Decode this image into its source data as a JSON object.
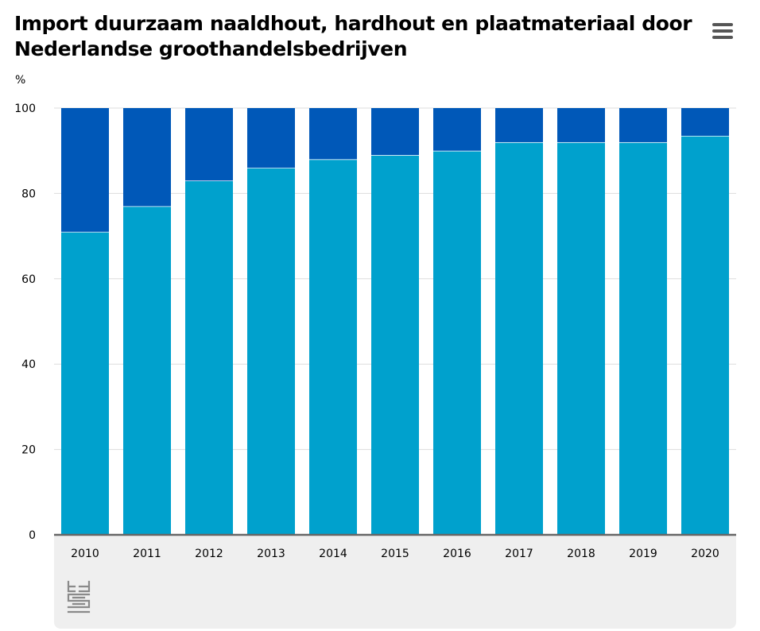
{
  "header": {
    "title": "Import duurzaam naaldhout, hardhout en plaatmateriaal door Nederlandse groothandelsbedrijven",
    "menu_icon": "hamburger-menu-icon"
  },
  "colors": {
    "series_1": "#00A1CD",
    "series_2": "#0058B8",
    "grid": "#dddddd",
    "axis": "#666666",
    "footer_bg": "#efefef"
  },
  "chart_data": {
    "type": "bar",
    "stacked": true,
    "title": "Import duurzaam naaldhout, hardhout en plaatmateriaal door Nederlandse groothandelsbedrijven",
    "ylabel": "%",
    "xlabel": "",
    "ylim": [
      0,
      100
    ],
    "yticks": [
      0,
      20,
      40,
      60,
      80,
      100
    ],
    "grid": true,
    "legend": "none",
    "categories": [
      "2010",
      "2011",
      "2012",
      "2013",
      "2014",
      "2015",
      "2016",
      "2017",
      "2018",
      "2019",
      "2020"
    ],
    "series": [
      {
        "values": [
          71,
          77,
          83,
          86,
          88,
          89,
          90,
          92,
          92,
          92,
          93.5
        ],
        "color": "#00A1CD"
      },
      {
        "values": [
          29,
          23,
          17,
          14,
          12,
          11,
          10,
          8,
          8,
          8,
          6.5
        ],
        "color": "#0058B8"
      }
    ]
  },
  "footer": {
    "logo": "cbs-logo-icon"
  }
}
